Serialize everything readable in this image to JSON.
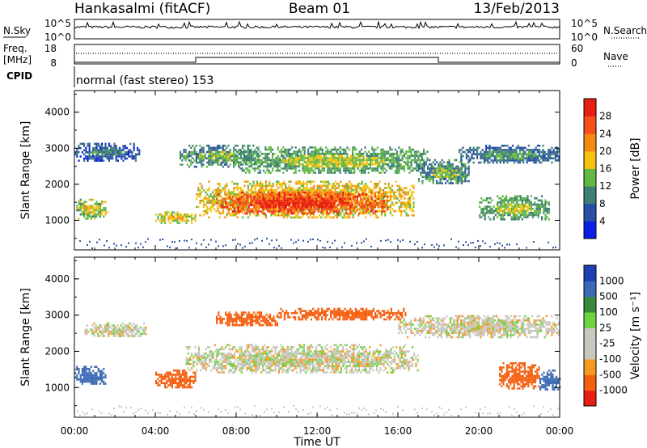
{
  "header": {
    "station": "Hankasalmi (fitACF)",
    "beam": "Beam 01",
    "date": "13/Feb/2013"
  },
  "noise_panel": {
    "left_label": "N.Sky",
    "right_label": "N.Search",
    "left_ticks": [
      "10^5",
      "10^0"
    ],
    "right_ticks": [
      "10^5",
      "10^0"
    ]
  },
  "freq_panel": {
    "left_label_line1": "Freq.",
    "left_label_line2": "[MHz]",
    "left_ticks": [
      "18",
      "8"
    ],
    "right_ticks": [
      "60",
      "0"
    ],
    "right_label": "Nave",
    "step_times_hours": [
      6.0,
      18.0
    ]
  },
  "cpid": {
    "label": "CPID",
    "text": "normal (fast stereo) 153"
  },
  "chart_data": [
    {
      "type": "heatmap",
      "name": "power",
      "ylabel": "Slant Range [km]",
      "yticks": [
        1000,
        2000,
        3000,
        4000
      ],
      "ylim": [
        180,
        4600
      ],
      "xlim_hours": [
        0,
        24
      ],
      "colorbar": {
        "label": "Power [dB]",
        "ticks": [
          "4",
          "8",
          "12",
          "16",
          "20",
          "24",
          "28"
        ],
        "colors": [
          "#0a1ee6",
          "#2a4fa5",
          "#3f7f78",
          "#62b845",
          "#f5c210",
          "#f58a10",
          "#f5501a",
          "#e61e14"
        ]
      },
      "regions": [
        {
          "x": [
            0.0,
            3.2
          ],
          "y": [
            2650,
            3150
          ],
          "v": 6
        },
        {
          "x": [
            5.2,
            9.0
          ],
          "y": [
            2500,
            3100
          ],
          "v": 10
        },
        {
          "x": [
            8.0,
            17.5
          ],
          "y": [
            2300,
            3050
          ],
          "v": 12
        },
        {
          "x": [
            6.0,
            16.8
          ],
          "y": [
            1100,
            2100
          ],
          "v": 18
        },
        {
          "x": [
            7.0,
            15.5
          ],
          "y": [
            1200,
            1800
          ],
          "v": 26
        },
        {
          "x": [
            0.0,
            1.6
          ],
          "y": [
            1050,
            1600
          ],
          "v": 14
        },
        {
          "x": [
            4.0,
            6.0
          ],
          "y": [
            950,
            1250
          ],
          "v": 16
        },
        {
          "x": [
            17.0,
            19.5
          ],
          "y": [
            2000,
            2700
          ],
          "v": 10
        },
        {
          "x": [
            19.0,
            24.0
          ],
          "y": [
            2600,
            3100
          ],
          "v": 8
        },
        {
          "x": [
            20.0,
            23.5
          ],
          "y": [
            1000,
            1700
          ],
          "v": 12
        }
      ]
    },
    {
      "type": "heatmap",
      "name": "velocity",
      "ylabel": "Slant Range [km]",
      "yticks": [
        1000,
        2000,
        3000,
        4000
      ],
      "ylim": [
        180,
        4600
      ],
      "xlim_hours": [
        0,
        24
      ],
      "colorbar": {
        "label": "Velocity [m s⁻¹]",
        "ticks": [
          "1000",
          "500",
          "100",
          "25",
          "-25",
          "-100",
          "-500",
          "-1000"
        ],
        "colors": [
          "#1e3fb4",
          "#3c6ab4",
          "#3a8a3c",
          "#6fd440",
          "#c8c8c0",
          "#c8c8c0",
          "#f59a20",
          "#f56010",
          "#e61e14"
        ]
      },
      "regions": [
        {
          "x": [
            0.5,
            3.5
          ],
          "y": [
            2400,
            2800
          ],
          "v": 0
        },
        {
          "x": [
            5.5,
            17.0
          ],
          "y": [
            1400,
            2200
          ],
          "v": 0
        },
        {
          "x": [
            16.0,
            24.0
          ],
          "y": [
            2400,
            3000
          ],
          "v": 0
        },
        {
          "x": [
            0.0,
            1.5
          ],
          "y": [
            1100,
            1600
          ],
          "v": 600
        },
        {
          "x": [
            4.0,
            6.0
          ],
          "y": [
            1000,
            1500
          ],
          "v": -200
        },
        {
          "x": [
            7.0,
            10.0
          ],
          "y": [
            2700,
            3100
          ],
          "v": -400
        },
        {
          "x": [
            10.0,
            16.5
          ],
          "y": [
            2900,
            3200
          ],
          "v": -200
        },
        {
          "x": [
            21.0,
            23.0
          ],
          "y": [
            1000,
            1700
          ],
          "v": -300
        },
        {
          "x": [
            23.0,
            24.0
          ],
          "y": [
            900,
            1500
          ],
          "v": 800
        }
      ]
    }
  ],
  "x_axis": {
    "ticks": [
      "00:00",
      "04:00",
      "08:00",
      "12:00",
      "16:00",
      "20:00",
      "00:00"
    ],
    "label": "Time UT"
  }
}
